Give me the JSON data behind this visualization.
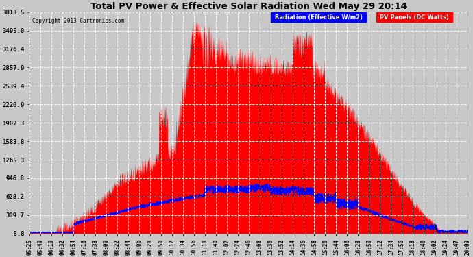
{
  "title": "Total PV Power & Effective Solar Radiation Wed May 29 20:14",
  "copyright": "Copyright 2013 Cartronics.com",
  "yticks": [
    3813.5,
    3495.0,
    3176.4,
    2857.9,
    2539.4,
    2220.9,
    1902.3,
    1583.8,
    1265.3,
    946.8,
    628.2,
    309.7,
    -8.8
  ],
  "ymin": -8.8,
  "ymax": 3813.5,
  "bg_color": "#c8c8c8",
  "plot_bg_color": "#c8c8c8",
  "red_fill_color": "#ff0000",
  "blue_line_color": "#0000ff",
  "grid_color": "#ffffff",
  "title_color": "#000000",
  "xtick_labels": [
    "05:25",
    "05:40",
    "06:10",
    "06:32",
    "06:54",
    "07:16",
    "07:38",
    "08:00",
    "08:22",
    "08:44",
    "09:06",
    "09:28",
    "09:50",
    "10:12",
    "10:34",
    "10:56",
    "11:18",
    "11:40",
    "12:02",
    "12:24",
    "12:46",
    "13:08",
    "13:30",
    "13:52",
    "14:14",
    "14:36",
    "14:58",
    "15:20",
    "15:44",
    "16:06",
    "16:28",
    "16:50",
    "17:12",
    "17:34",
    "17:56",
    "18:18",
    "18:40",
    "19:02",
    "19:24",
    "19:47",
    "20:09"
  ]
}
